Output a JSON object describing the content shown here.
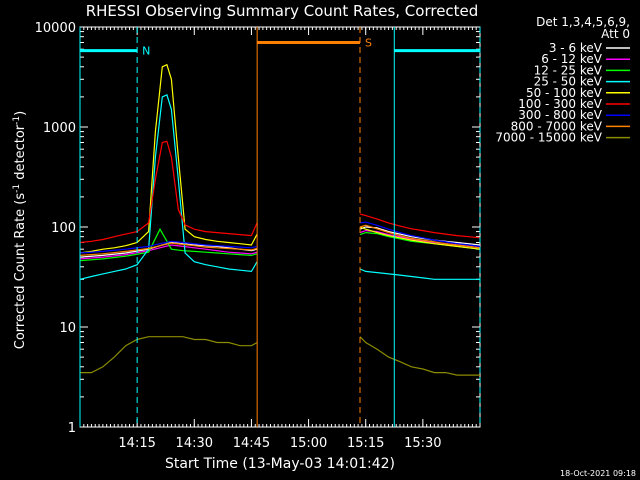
{
  "chart_data": {
    "type": "line",
    "title": "RHESSI Observing Summary Count Rates, Corrected",
    "xlabel": "Start Time (13-May-03 14:01:42)",
    "ylabel_main": "Corrected Count Rate (s",
    "ylabel_sup1": "-1",
    "ylabel_mid": " detector",
    "ylabel_sup2": "-1",
    "ylabel_end": ")",
    "yscale": "log",
    "ylim": [
      1,
      10000
    ],
    "xlim_minutes": [
      14.0,
      15.75
    ],
    "x_unit": "hours after 00:00 UT on 13-May-03",
    "yticks": [
      "1",
      "10",
      "100",
      "1000",
      "10000"
    ],
    "xticks": [
      {
        "label": "14:15",
        "t": 14.25
      },
      {
        "label": "14:30",
        "t": 14.5
      },
      {
        "label": "14:45",
        "t": 14.75
      },
      {
        "label": "15:00",
        "t": 15.0
      },
      {
        "label": "15:15",
        "t": 15.25
      },
      {
        "label": "15:30",
        "t": 15.5
      }
    ],
    "legend_header": [
      "Det 1,3,4,5,6,9,",
      "Att 0"
    ],
    "legend_position": "right",
    "series": [
      {
        "name": "3 - 6 keV",
        "color": "#ffffff",
        "segments": [
          {
            "t": [
              14.0,
              14.1,
              14.2,
              14.3,
              14.35,
              14.4,
              14.45,
              14.5,
              14.55,
              14.6,
              14.65,
              14.7,
              14.75,
              14.775
            ],
            "y": [
              50,
              52,
              55,
              60,
              65,
              70,
              68,
              66,
              65,
              64,
              62,
              60,
              58,
              60
            ]
          },
          {
            "t": [
              15.225,
              15.25,
              15.3,
              15.35,
              15.4,
              15.45,
              15.5,
              15.55,
              15.6,
              15.65,
              15.7,
              15.75
            ],
            "y": [
              95,
              100,
              98,
              90,
              85,
              80,
              77,
              74,
              72,
              70,
              68,
              66
            ]
          }
        ]
      },
      {
        "name": "6 - 12 keV",
        "color": "#ff00ff",
        "segments": [
          {
            "t": [
              14.0,
              14.1,
              14.2,
              14.3,
              14.35,
              14.4,
              14.45,
              14.5,
              14.55,
              14.6,
              14.65,
              14.7,
              14.75,
              14.775
            ],
            "y": [
              48,
              50,
              53,
              58,
              62,
              66,
              64,
              62,
              60,
              58,
              56,
              55,
              54,
              56
            ]
          },
          {
            "t": [
              15.225,
              15.25,
              15.3,
              15.35,
              15.4,
              15.45,
              15.5,
              15.55,
              15.6,
              15.65,
              15.7,
              15.75
            ],
            "y": [
              88,
              92,
              90,
              84,
              80,
              76,
              73,
              70,
              68,
              66,
              64,
              62
            ]
          }
        ]
      },
      {
        "name": "12 - 25 keV",
        "color": "#00ff00",
        "segments": [
          {
            "t": [
              14.0,
              14.1,
              14.2,
              14.3,
              14.35,
              14.4,
              14.45,
              14.5,
              14.55,
              14.6,
              14.65,
              14.7,
              14.75,
              14.775
            ],
            "y": [
              46,
              48,
              51,
              56,
              95,
              60,
              58,
              57,
              56,
              55,
              54,
              53,
              52,
              54
            ]
          },
          {
            "t": [
              15.225,
              15.25,
              15.3,
              15.35,
              15.4,
              15.45,
              15.5,
              15.55,
              15.6,
              15.65,
              15.7,
              15.75
            ],
            "y": [
              84,
              88,
              86,
              80,
              76,
              72,
              70,
              68,
              66,
              64,
              62,
              60
            ]
          }
        ]
      },
      {
        "name": "25 - 50 keV",
        "color": "#00ffff",
        "segments": [
          {
            "t": [
              14.0,
              14.05,
              14.1,
              14.15,
              14.2,
              14.25,
              14.3,
              14.33,
              14.36,
              14.38,
              14.4,
              14.43,
              14.46,
              14.5,
              14.55,
              14.6,
              14.65,
              14.7,
              14.75,
              14.775
            ],
            "y": [
              30,
              32,
              34,
              36,
              38,
              42,
              60,
              500,
              2000,
              2100,
              1500,
              300,
              55,
              45,
              42,
              40,
              38,
              37,
              36,
              45
            ]
          },
          {
            "t": [
              15.225,
              15.25,
              15.3,
              15.35,
              15.4,
              15.45,
              15.5,
              15.55,
              15.6,
              15.65,
              15.7,
              15.75
            ],
            "y": [
              38,
              36,
              35,
              34,
              33,
              32,
              31,
              30,
              30,
              30,
              30,
              30
            ]
          }
        ]
      },
      {
        "name": "50 - 100 keV",
        "color": "#ffff00",
        "segments": [
          {
            "t": [
              14.0,
              14.05,
              14.1,
              14.15,
              14.2,
              14.25,
              14.3,
              14.33,
              14.36,
              14.38,
              14.4,
              14.43,
              14.46,
              14.5,
              14.55,
              14.6,
              14.65,
              14.7,
              14.75,
              14.775
            ],
            "y": [
              55,
              57,
              60,
              62,
              65,
              70,
              90,
              900,
              4000,
              4200,
              3000,
              500,
              95,
              80,
              75,
              72,
              70,
              68,
              66,
              85
            ]
          },
          {
            "t": [
              15.225,
              15.25,
              15.3,
              15.35,
              15.4,
              15.45,
              15.5,
              15.55,
              15.6,
              15.65,
              15.7,
              15.75
            ],
            "y": [
              100,
              95,
              88,
              82,
              78,
              74,
              71,
              68,
              66,
              64,
              62,
              60
            ]
          }
        ]
      },
      {
        "name": "100 - 300 keV",
        "color": "#ff0000",
        "segments": [
          {
            "t": [
              14.0,
              14.05,
              14.1,
              14.15,
              14.2,
              14.25,
              14.3,
              14.33,
              14.36,
              14.38,
              14.4,
              14.43,
              14.46,
              14.5,
              14.55,
              14.6,
              14.65,
              14.7,
              14.75,
              14.775
            ],
            "y": [
              70,
              72,
              75,
              80,
              85,
              90,
              110,
              300,
              700,
              720,
              500,
              150,
              105,
              95,
              90,
              88,
              86,
              84,
              82,
              110
            ]
          },
          {
            "t": [
              15.225,
              15.25,
              15.3,
              15.35,
              15.4,
              15.45,
              15.5,
              15.55,
              15.6,
              15.65,
              15.7,
              15.75
            ],
            "y": [
              135,
              130,
              120,
              110,
              102,
              96,
              92,
              88,
              85,
              82,
              80,
              78
            ]
          }
        ]
      },
      {
        "name": "300 - 800 keV",
        "color": "#0000ff",
        "segments": [
          {
            "t": [
              14.0,
              14.1,
              14.2,
              14.3,
              14.35,
              14.4,
              14.45,
              14.5,
              14.55,
              14.6,
              14.65,
              14.7,
              14.75,
              14.775
            ],
            "y": [
              55,
              57,
              60,
              64,
              68,
              72,
              70,
              68,
              66,
              65,
              64,
              63,
              62,
              64
            ]
          },
          {
            "t": [
              15.225,
              15.25,
              15.3,
              15.35,
              15.4,
              15.45,
              15.5,
              15.55,
              15.6,
              15.65,
              15.7,
              15.75
            ],
            "y": [
              110,
              112,
              104,
              95,
              88,
              82,
              78,
              74,
              71,
              68,
              66,
              64
            ]
          }
        ]
      },
      {
        "name": "800 - 7000 keV",
        "color": "#ff8000",
        "segments": [
          {
            "t": [
              14.0,
              14.1,
              14.2,
              14.3,
              14.35,
              14.4,
              14.45,
              14.5,
              14.55,
              14.6,
              14.65,
              14.7,
              14.75,
              14.775
            ],
            "y": [
              52,
              54,
              57,
              61,
              65,
              69,
              67,
              65,
              63,
              62,
              61,
              60,
              59,
              61
            ]
          },
          {
            "t": [
              15.225,
              15.25,
              15.3,
              15.35,
              15.4,
              15.45,
              15.5,
              15.55,
              15.6,
              15.65,
              15.7,
              15.75
            ],
            "y": [
              100,
              104,
              96,
              88,
              82,
              77,
              74,
              71,
              68,
              66,
              64,
              62
            ]
          }
        ]
      },
      {
        "name": "7000 - 15000 keV",
        "color": "#8b8b00",
        "segments": [
          {
            "t": [
              14.0,
              14.05,
              14.1,
              14.15,
              14.2,
              14.25,
              14.3,
              14.35,
              14.4,
              14.45,
              14.5,
              14.55,
              14.6,
              14.65,
              14.7,
              14.75,
              14.775
            ],
            "y": [
              3.5,
              3.5,
              4,
              5,
              6.5,
              7.5,
              8,
              8,
              8,
              8,
              7.5,
              7.5,
              7,
              7,
              6.5,
              6.5,
              7
            ]
          },
          {
            "t": [
              15.225,
              15.25,
              15.3,
              15.35,
              15.4,
              15.45,
              15.5,
              15.55,
              15.6,
              15.65,
              15.7,
              15.75
            ],
            "y": [
              8,
              7,
              6,
              5,
              4.5,
              4,
              3.8,
              3.5,
              3.5,
              3.3,
              3.3,
              3.3
            ]
          }
        ]
      }
    ],
    "flags": [
      {
        "label": "N",
        "color": "#00ffff",
        "segments": [
          {
            "t0": 14.0,
            "t1": 14.25
          },
          {
            "t0": 15.375,
            "t1": 15.75
          }
        ],
        "level": 5800
      },
      {
        "label": "S",
        "color": "#ff8000",
        "segments": [
          {
            "t0": 14.775,
            "t1": 15.225
          }
        ],
        "level": 7000
      }
    ],
    "vlines": [
      {
        "t": 14.0,
        "color": "#00ffff",
        "style": "solid"
      },
      {
        "t": 14.25,
        "color": "#00ffff",
        "style": "dashed"
      },
      {
        "t": 14.775,
        "color": "#ff8000",
        "style": "solid"
      },
      {
        "t": 15.225,
        "color": "#ff8000",
        "style": "dashed"
      },
      {
        "t": 15.375,
        "color": "#00ffff",
        "style": "solid"
      },
      {
        "t": 15.75,
        "color": "#00ffff",
        "style": "dashed"
      }
    ],
    "timestamp": "18-Oct-2021 09:18"
  }
}
